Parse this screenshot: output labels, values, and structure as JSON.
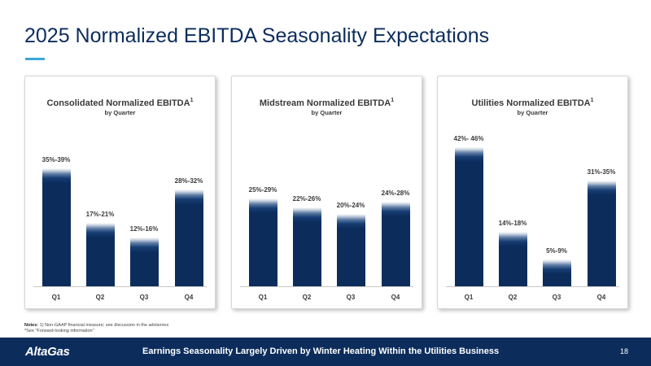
{
  "title": "2025 Normalized EBITDA Seasonality Expectations",
  "chart_data": [
    {
      "type": "bar",
      "title": "Consolidated Normalized EBITDA",
      "title_superscript": "1",
      "subtitle": "by Quarter",
      "categories": [
        "Q1",
        "Q2",
        "Q3",
        "Q4"
      ],
      "ranges": [
        [
          35,
          39
        ],
        [
          17,
          21
        ],
        [
          12,
          16
        ],
        [
          28,
          32
        ]
      ],
      "data_labels": [
        "35%-39%",
        "17%-21%",
        "12%-16%",
        "28%-32%"
      ],
      "ylim": [
        0,
        50
      ]
    },
    {
      "type": "bar",
      "title": "Midstream Normalized EBITDA",
      "title_superscript": "1",
      "subtitle": "by Quarter",
      "categories": [
        "Q1",
        "Q2",
        "Q3",
        "Q4"
      ],
      "ranges": [
        [
          25,
          29
        ],
        [
          22,
          26
        ],
        [
          20,
          24
        ],
        [
          24,
          28
        ]
      ],
      "data_labels": [
        "25%-29%",
        "22%-26%",
        "20%-24%",
        "24%-28%"
      ],
      "ylim": [
        0,
        50
      ]
    },
    {
      "type": "bar",
      "title": "Utilities Normalized EBITDA",
      "title_superscript": "1",
      "subtitle": "by Quarter",
      "categories": [
        "Q1",
        "Q2",
        "Q3",
        "Q4"
      ],
      "ranges": [
        [
          42,
          46
        ],
        [
          14,
          18
        ],
        [
          5,
          9
        ],
        [
          31,
          35
        ]
      ],
      "data_labels": [
        "42%- 46%",
        "14%-18%",
        "5%-9%",
        "31%-35%"
      ],
      "ylim": [
        0,
        50
      ]
    }
  ],
  "notes": {
    "label": "Notes:",
    "line1": "1) Non-GAAP financial measure; see discussion in the advisories",
    "line2": "*See \"Forward-looking information\""
  },
  "footer": {
    "logo": "AltaGas",
    "text": "Earnings Seasonality Largely Driven by Winter Heating Within the Utilities Business",
    "page_number": "18"
  },
  "colors": {
    "bar": "#0c2d5c",
    "title": "#0c2d5c",
    "accent": "#3aa7d6",
    "footer": "#0c2d5c"
  }
}
